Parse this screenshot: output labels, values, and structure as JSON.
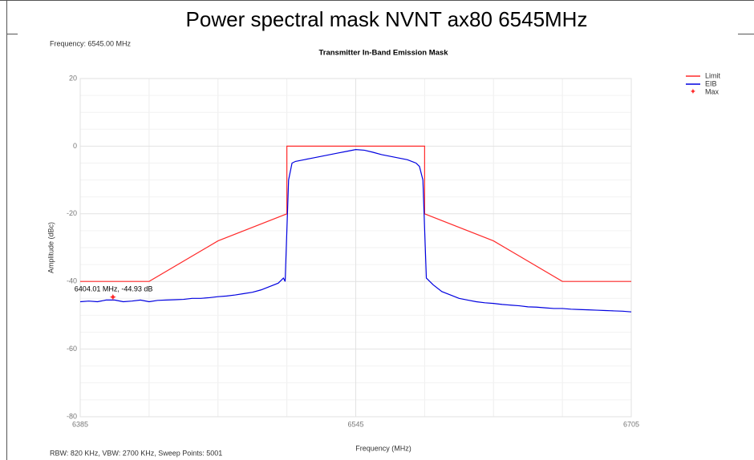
{
  "chart_data": {
    "type": "line",
    "title": "Power spectral mask NVNT ax80 6545MHz",
    "subtitle": "Transmitter In-Band Emission Mask",
    "info_top": "Frequency: 6545.00 MHz",
    "info_bottom": "RBW: 820 KHz,  VBW: 2700 KHz,  Sweep Points: 5001",
    "xlabel": "Frequency (MHz)",
    "ylabel": "Amplitude (dBc)",
    "xlim": [
      6385,
      6705
    ],
    "ylim": [
      -80,
      20
    ],
    "xticks": [
      6385,
      6545,
      6705
    ],
    "yticks": [
      20,
      0,
      -20,
      -40,
      -60,
      -80
    ],
    "xminor": [
      6425,
      6465,
      6505,
      6585,
      6625,
      6665
    ],
    "yminor": [
      15,
      10,
      5,
      -5,
      -10,
      -15,
      -25,
      -30,
      -35,
      -45,
      -50,
      -55,
      -65,
      -70,
      -75
    ],
    "grid": true,
    "legend": "top-right",
    "series": [
      {
        "name": "Limit",
        "color": "#ff2a2a",
        "x": [
          6385,
          6425,
          6465,
          6505,
          6505,
          6585,
          6585,
          6625,
          6665,
          6705
        ],
        "values": [
          -40,
          -40,
          -28,
          -20,
          0,
          0,
          -20,
          -28,
          -40,
          -40
        ]
      },
      {
        "name": "EIB",
        "color": "#0000e0",
        "x": [
          6385,
          6390,
          6395,
          6400,
          6405,
          6410,
          6415,
          6420,
          6425,
          6430,
          6435,
          6440,
          6445,
          6450,
          6455,
          6460,
          6465,
          6470,
          6475,
          6480,
          6485,
          6490,
          6495,
          6500,
          6503,
          6504,
          6506,
          6508,
          6510,
          6515,
          6520,
          6525,
          6530,
          6535,
          6540,
          6545,
          6550,
          6555,
          6560,
          6565,
          6570,
          6575,
          6580,
          6582,
          6584,
          6586,
          6588,
          6590,
          6595,
          6600,
          6605,
          6610,
          6615,
          6620,
          6625,
          6630,
          6635,
          6640,
          6645,
          6650,
          6655,
          6660,
          6665,
          6670,
          6675,
          6680,
          6685,
          6690,
          6695,
          6700,
          6705
        ],
        "values": [
          -46,
          -45.8,
          -46,
          -45.5,
          -45.5,
          -46,
          -45.8,
          -45.5,
          -46,
          -45.6,
          -45.5,
          -45.4,
          -45.3,
          -45,
          -45,
          -44.8,
          -44.5,
          -44.3,
          -44,
          -43.6,
          -43.2,
          -42.5,
          -41.5,
          -40.5,
          -39,
          -40,
          -10,
          -5,
          -4.5,
          -4,
          -3.5,
          -3,
          -2.5,
          -2,
          -1.5,
          -1,
          -1.2,
          -1.8,
          -2.5,
          -3,
          -3.5,
          -4,
          -5,
          -6,
          -10,
          -39,
          -40,
          -41,
          -43,
          -44,
          -45,
          -45.5,
          -46,
          -46.3,
          -46.5,
          -46.8,
          -47,
          -47.2,
          -47.5,
          -47.6,
          -47.8,
          -48,
          -48,
          -48.2,
          -48.3,
          -48.4,
          -48.5,
          -48.6,
          -48.7,
          -48.8,
          -49
        ]
      }
    ],
    "max_marker": {
      "name": "Max",
      "color": "#ff2a2a",
      "x": 6404.01,
      "y": -44.93,
      "label": "6404.01 MHz, -44.93 dB"
    }
  }
}
